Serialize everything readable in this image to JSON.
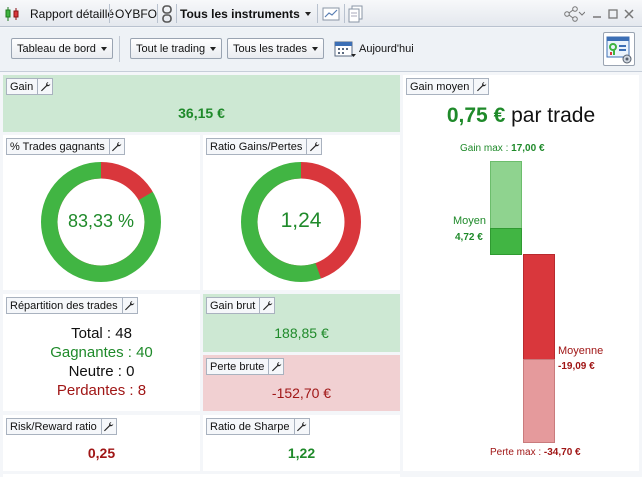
{
  "window": {
    "report_label": "Rapport détaillé",
    "account": "OYBFO",
    "instruments": "Tous les instruments"
  },
  "toolbar": {
    "dashboard": "Tableau de bord",
    "trading": "Tout le trading",
    "trades": "Tous les trades",
    "date": "Aujourd'hui"
  },
  "colors": {
    "green": "#41b543",
    "red": "#d9373c",
    "light_green": "#8fd38f",
    "light_red": "#e59a9c"
  },
  "panels": {
    "gain": {
      "title": "Gain",
      "value": "36,15 €"
    },
    "win_pct": {
      "title": "% Trades gagnants",
      "value": "83,33 %",
      "fraction": 0.8333
    },
    "ratio": {
      "title": "Ratio Gains/Pertes",
      "value": "1,24",
      "fraction": 0.5536
    },
    "distribution": {
      "title": "Répartition des trades",
      "total": "Total : 48",
      "winners": "Gagnantes : 40",
      "neutral": "Neutre : 0",
      "losers": "Perdantes : 8"
    },
    "gross_gain": {
      "title": "Gain brut",
      "value": "188,85 €"
    },
    "gross_loss": {
      "title": "Perte brute",
      "value": "-152,70 €"
    },
    "risk_reward": {
      "title": "Risk/Reward ratio",
      "value": "0,25"
    },
    "sharpe": {
      "title": "Ratio de Sharpe",
      "value": "1,22"
    },
    "avg_gain": {
      "title": "Gain moyen",
      "value": "0,75 €",
      "suffix": " par trade",
      "max_gain_label": "Gain max : ",
      "max_gain_value": "17,00 €",
      "avg_label": "Moyen",
      "avg_value": "4,72 €",
      "avg_loss_label": "Moyenne",
      "avg_loss_value": "-19,09 €",
      "max_loss_label": "Perte max : ",
      "max_loss_value": "-34,70 €"
    }
  }
}
